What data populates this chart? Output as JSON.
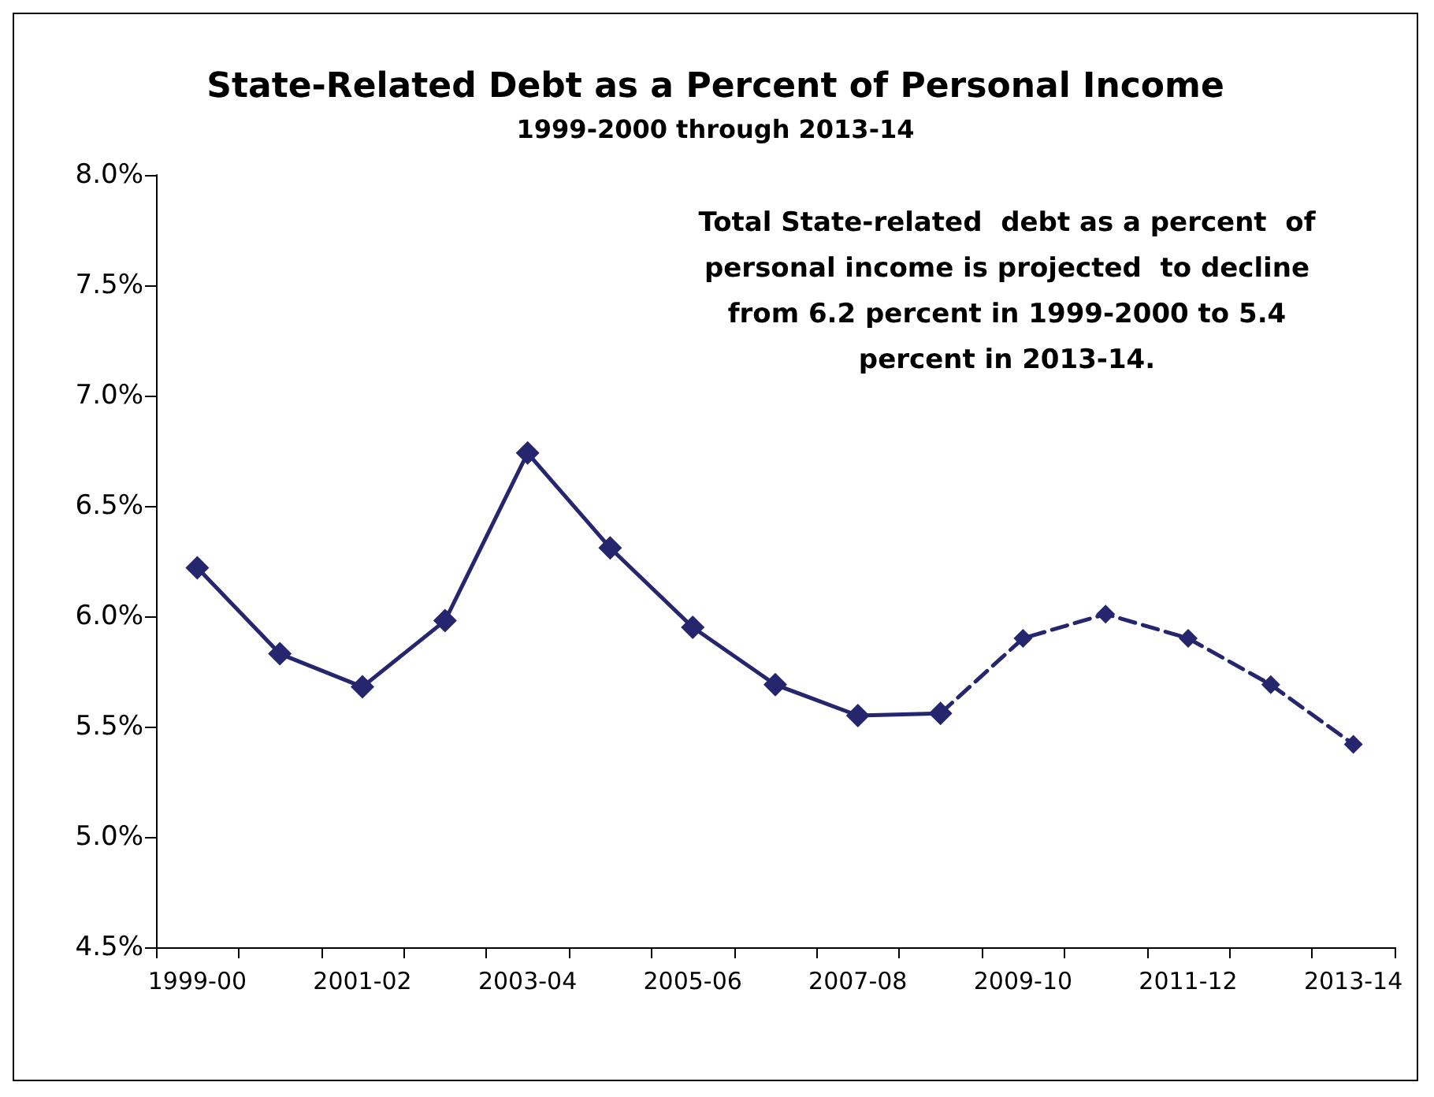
{
  "chart_data": {
    "type": "line",
    "title": "State-Related Debt as a Percent of Personal Income",
    "subtitle": "1999-2000 through 2013-14",
    "annotations": [
      "Total State-related  debt as a percent  of\npersonal income is projected  to decline\nfrom 6.2 percent in 1999-2000 to 5.4\npercent in 2013-14."
    ],
    "categories": [
      "1999-00",
      null,
      "2001-02",
      null,
      "2003-04",
      null,
      "2005-06",
      null,
      "2007-08",
      null,
      "2009-10",
      null,
      "2011-12",
      null,
      "2013-14"
    ],
    "series": [
      {
        "color": "#26266e",
        "line_style": "solid",
        "values": [
          6.22,
          5.83,
          5.68,
          5.98,
          6.74,
          6.31,
          5.95,
          5.69,
          5.55,
          5.56,
          null,
          null,
          null,
          null,
          null
        ]
      },
      {
        "color": "#26266e",
        "line_style": "dashed",
        "values": [
          null,
          null,
          null,
          null,
          null,
          null,
          null,
          null,
          null,
          5.56,
          5.9,
          6.01,
          5.9,
          5.69,
          5.42
        ]
      }
    ],
    "ylim": [
      4.5,
      8.0
    ],
    "yticks": [
      {
        "value": 4.5,
        "label": "4.5%"
      },
      {
        "value": 5.0,
        "label": "5.0%"
      },
      {
        "value": 5.5,
        "label": "5.5%"
      },
      {
        "value": 6.0,
        "label": "6.0%"
      },
      {
        "value": 6.5,
        "label": "6.5%"
      },
      {
        "value": 7.0,
        "label": "7.0%"
      },
      {
        "value": 7.5,
        "label": "7.5%"
      },
      {
        "value": 8.0,
        "label": "8.0%"
      }
    ],
    "grid": false,
    "marker": "diamond"
  }
}
